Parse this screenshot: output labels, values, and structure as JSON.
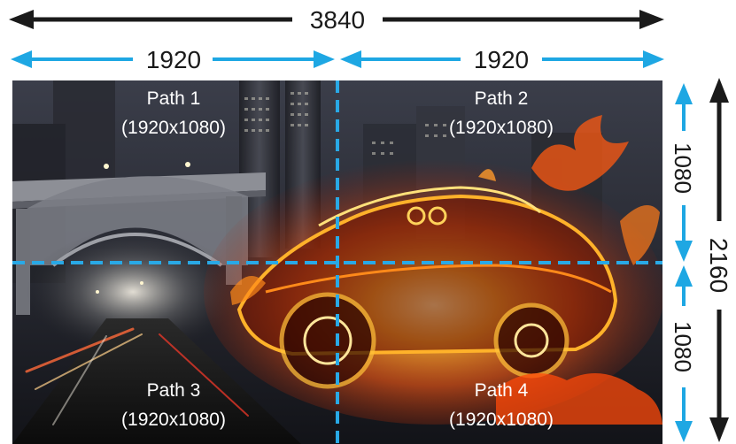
{
  "dimensions": {
    "total_width": "3840",
    "left_width": "1920",
    "right_width": "1920",
    "top_height": "1080",
    "total_height": "2160",
    "bottom_height": "1080"
  },
  "paths": [
    {
      "name": "Path 1",
      "resolution": "(1920x1080)"
    },
    {
      "name": "Path 2",
      "resolution": "(1920x1080)"
    },
    {
      "name": "Path 3",
      "resolution": "(1920x1080)"
    },
    {
      "name": "Path 4",
      "resolution": "(1920x1080)"
    }
  ],
  "colors": {
    "black_arrow": "#1a1a1a",
    "blue_arrow": "#1ea7e3",
    "divider": "#29a9e6"
  },
  "image": {
    "subject": "flaming-sports-car-city-scene"
  }
}
